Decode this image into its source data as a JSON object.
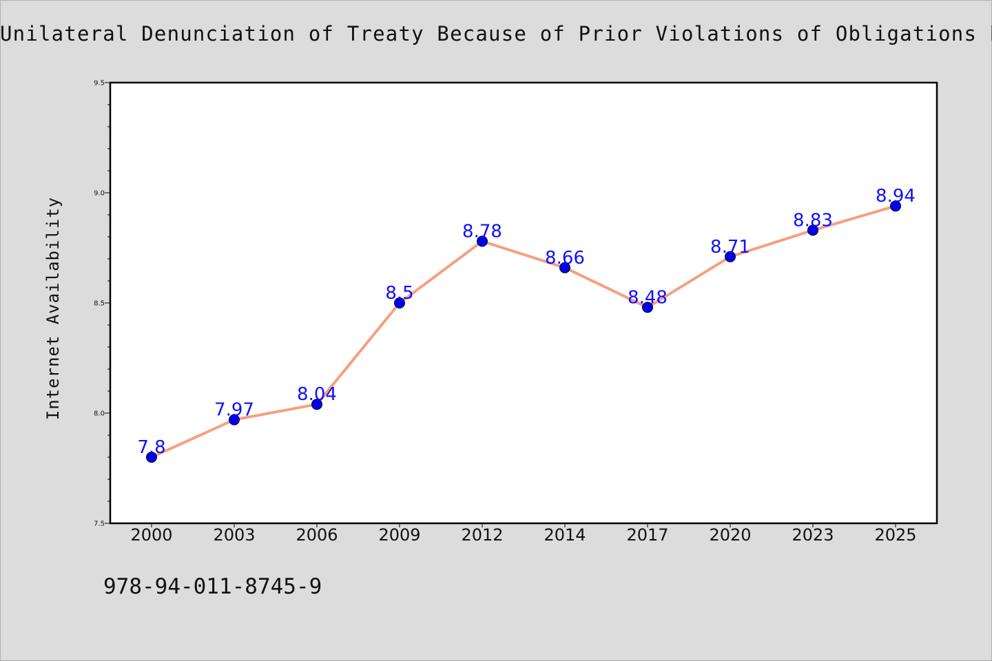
{
  "chart_data": {
    "type": "line",
    "title": "Unilateral Denunciation of Treaty Because of Prior Violations of Obligations by",
    "xlabel": "",
    "ylabel": "Internet Availability",
    "categories": [
      "2000",
      "2003",
      "2006",
      "2009",
      "2012",
      "2014",
      "2017",
      "2020",
      "2023",
      "2025"
    ],
    "series": [
      {
        "values": [
          7.8,
          7.97,
          8.04,
          8.5,
          8.78,
          8.66,
          8.48,
          8.71,
          8.83,
          8.94
        ],
        "line_color": "#f4a080",
        "marker_color": "#0000ee",
        "label_color": "#1010ff"
      }
    ],
    "data_labels": [
      "7.8",
      "7.97",
      "8.04",
      "8.5",
      "8.78",
      "8.66",
      "8.48",
      "8.71",
      "8.83",
      "8.94"
    ],
    "ylim": [
      7.5,
      9.5
    ],
    "yticks": [
      "7.5",
      "8.0",
      "8.5",
      "9.0",
      "9.5"
    ],
    "grid": false,
    "legend": "none"
  },
  "footer_text": "978-94-011-8745-9",
  "colors": {
    "background": "#dcdcdc",
    "plot_area": "#ffffff"
  }
}
